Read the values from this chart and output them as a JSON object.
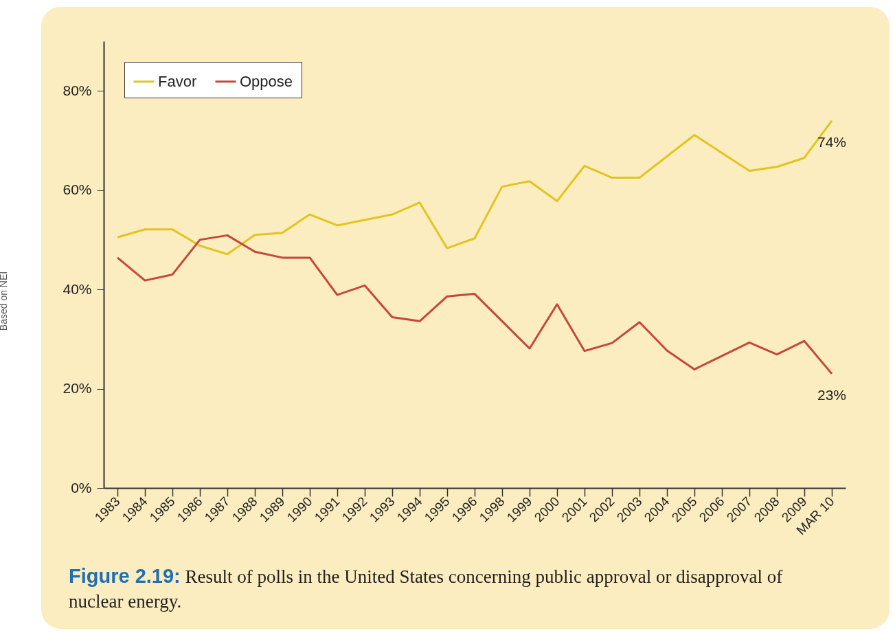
{
  "chart_data": {
    "type": "line",
    "categories": [
      "1983",
      "1984",
      "1985",
      "1986",
      "1987",
      "1988",
      "1989",
      "1990",
      "1991",
      "1992",
      "1993",
      "1994",
      "1995",
      "1996",
      "1998",
      "1999",
      "2000",
      "2001",
      "2002",
      "2003",
      "2004",
      "2005",
      "2006",
      "2007",
      "2008",
      "2009",
      "MAR 10"
    ],
    "series": [
      {
        "name": "Favor",
        "color": "#e2c420",
        "values": [
          50.5,
          52.1,
          52.1,
          48.8,
          47.1,
          51.0,
          51.4,
          55.1,
          52.9,
          54.0,
          55.1,
          57.5,
          48.3,
          50.3,
          60.7,
          61.8,
          57.8,
          64.9,
          62.5,
          62.5,
          66.8,
          71.1,
          67.5,
          63.9,
          64.7,
          66.5,
          74
        ],
        "value_labels": [
          null,
          null,
          null,
          null,
          null,
          null,
          null,
          null,
          null,
          null,
          null,
          null,
          null,
          null,
          null,
          null,
          null,
          null,
          null,
          null,
          null,
          null,
          null,
          null,
          null,
          null,
          "74%"
        ]
      },
      {
        "name": "Oppose",
        "color": "#c6473a",
        "values": [
          46.4,
          41.8,
          43.0,
          50.0,
          50.9,
          47.6,
          46.4,
          46.4,
          38.9,
          40.8,
          34.4,
          33.6,
          38.6,
          39.1,
          33.6,
          28.1,
          37.0,
          27.6,
          29.2,
          33.4,
          27.7,
          23.9,
          26.6,
          29.3,
          26.9,
          29.6,
          23
        ],
        "value_labels": [
          null,
          null,
          null,
          null,
          null,
          null,
          null,
          null,
          null,
          null,
          null,
          null,
          null,
          null,
          null,
          null,
          null,
          null,
          null,
          null,
          null,
          null,
          null,
          null,
          null,
          null,
          "23%"
        ]
      }
    ],
    "ylim": [
      0,
      90
    ],
    "yticks": [
      {
        "value": 0,
        "label": "0%"
      },
      {
        "value": 20,
        "label": "20%"
      },
      {
        "value": 40,
        "label": "40%"
      },
      {
        "value": 60,
        "label": "60%"
      },
      {
        "value": 80,
        "label": "80%"
      }
    ],
    "legend": "top left",
    "grid": false,
    "marker": "none",
    "line_style": "solid",
    "annotations": [
      "Figure 2.19: Result of polls in the United States concerning public approval or disapproval of nuclear energy.",
      "Based on NEI"
    ]
  }
}
